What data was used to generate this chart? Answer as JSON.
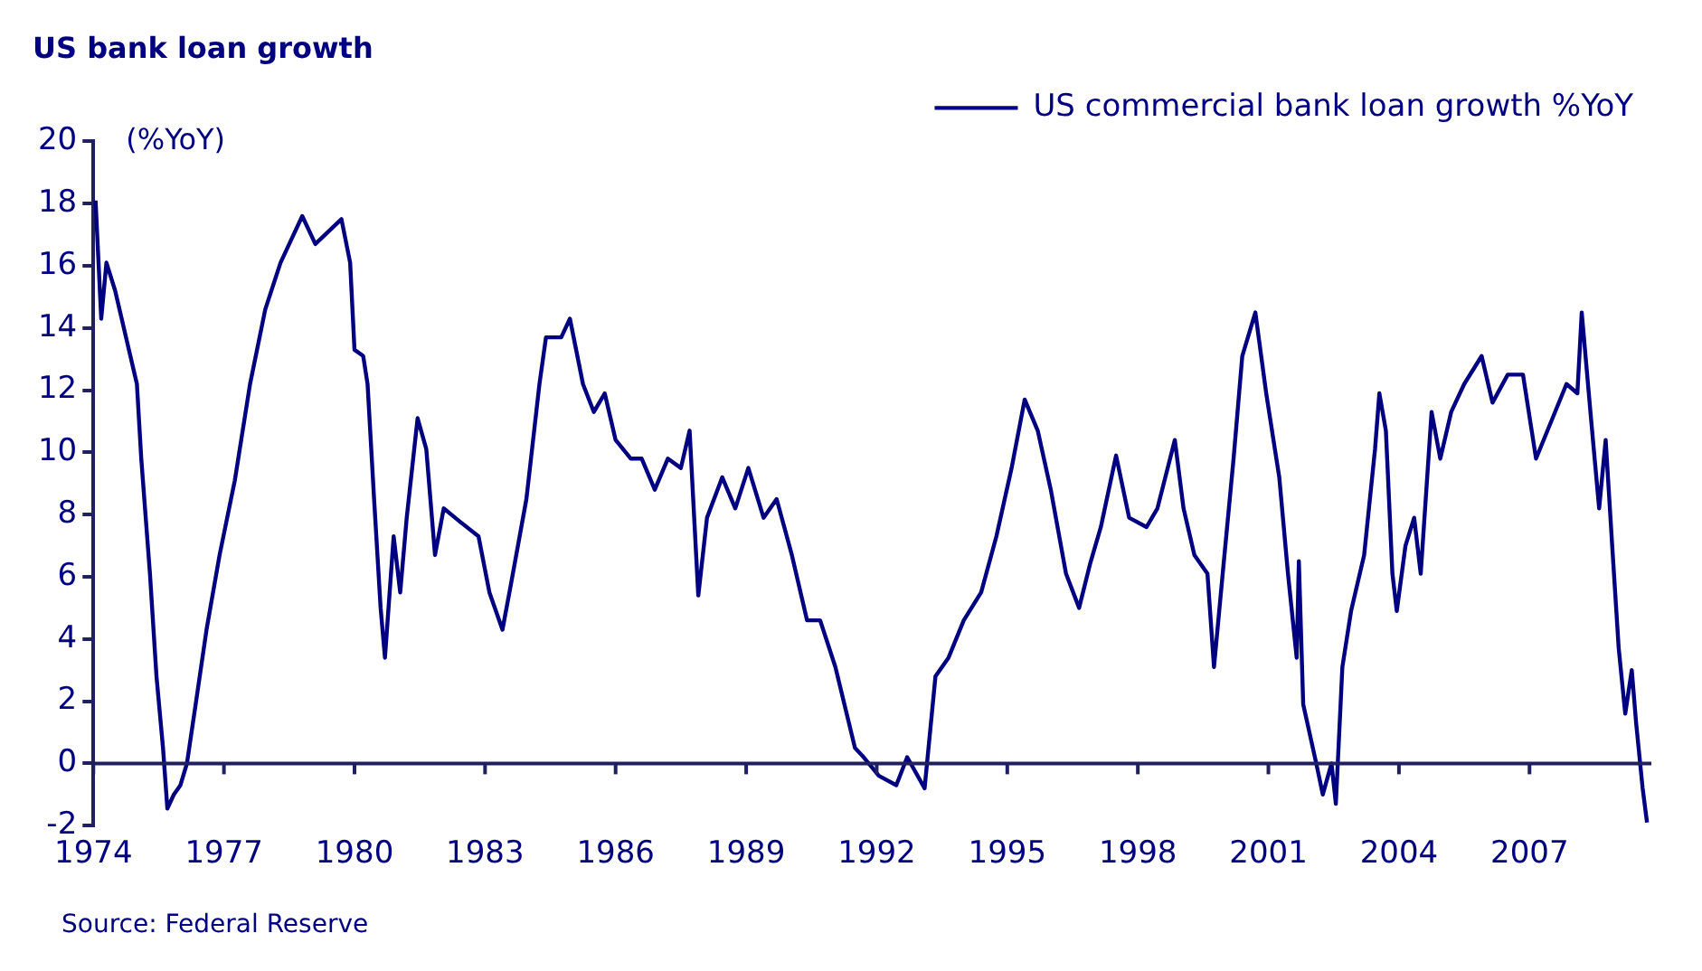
{
  "chart_data": {
    "type": "line",
    "title": "US bank loan growth",
    "ylabel": "(%YoY)",
    "annotations": [
      "Source: Federal Reserve"
    ],
    "series": [
      {
        "name": "US commercial bank loan growth %YoY",
        "color": "#000080",
        "x": [
          1974.05,
          1974.18,
          1974.3,
          1974.5,
          1974.8,
          1975.0,
          1975.1,
          1975.3,
          1975.45,
          1975.6,
          1975.7,
          1975.85,
          1976.0,
          1976.15,
          1976.35,
          1976.6,
          1976.9,
          1977.25,
          1977.6,
          1977.95,
          1978.3,
          1978.5,
          1978.8,
          1979.1,
          1979.4,
          1979.7,
          1979.9,
          1980.0,
          1980.2,
          1980.3,
          1980.45,
          1980.6,
          1980.7,
          1980.9,
          1981.05,
          1981.2,
          1981.45,
          1981.65,
          1981.85,
          1982.05,
          1982.4,
          1982.85,
          1983.1,
          1983.4,
          1983.6,
          1983.95,
          1984.25,
          1984.4,
          1984.75,
          1984.95,
          1985.25,
          1985.5,
          1985.75,
          1986.0,
          1986.35,
          1986.6,
          1986.9,
          1987.2,
          1987.5,
          1987.7,
          1987.9,
          1988.1,
          1988.45,
          1988.75,
          1989.05,
          1989.4,
          1989.7,
          1990.05,
          1990.4,
          1990.7,
          1991.05,
          1991.5,
          1991.7,
          1992.05,
          1992.45,
          1992.7,
          1993.1,
          1993.35,
          1993.65,
          1994.0,
          1994.4,
          1994.75,
          1995.1,
          1995.4,
          1995.7,
          1996.0,
          1996.35,
          1996.65,
          1996.9,
          1997.15,
          1997.5,
          1997.8,
          1998.2,
          1998.45,
          1998.85,
          1999.05,
          1999.3,
          1999.6,
          1999.75,
          1999.95,
          2000.2,
          2000.4,
          2000.7,
          2000.95,
          2001.25,
          2001.45,
          2001.65,
          2001.7,
          2001.8,
          2002.1,
          2002.25,
          2002.45,
          2002.55,
          2002.7,
          2002.9,
          2003.2,
          2003.45,
          2003.55,
          2003.7,
          2003.85,
          2003.95,
          2004.15,
          2004.35,
          2004.5,
          2004.75,
          2004.95,
          2005.2,
          2005.5,
          2005.9,
          2006.15,
          2006.5,
          2006.85,
          2007.15,
          2007.5,
          2007.85,
          2008.1,
          2008.2,
          2008.4,
          2008.6,
          2008.75,
          2008.9,
          2009.05,
          2009.2,
          2009.35,
          2009.45,
          2009.6,
          2009.7
        ],
        "values": [
          18.1,
          14.3,
          16.1,
          15.2,
          13.4,
          12.2,
          9.8,
          6.1,
          2.8,
          0.5,
          -1.45,
          -1.0,
          -0.7,
          0,
          1.9,
          4.3,
          6.7,
          9.1,
          12.2,
          14.6,
          16.1,
          16.7,
          17.6,
          16.7,
          17.1,
          17.5,
          16.1,
          13.3,
          13.1,
          12.2,
          8.5,
          5.0,
          3.4,
          7.3,
          5.5,
          7.9,
          11.1,
          10.1,
          6.7,
          8.2,
          7.8,
          7.3,
          5.5,
          4.3,
          5.8,
          8.5,
          12.2,
          13.7,
          13.7,
          14.3,
          12.2,
          11.3,
          11.9,
          10.4,
          9.8,
          9.8,
          8.8,
          9.8,
          9.5,
          10.7,
          5.4,
          7.9,
          9.2,
          8.2,
          9.5,
          7.9,
          8.5,
          6.7,
          4.6,
          4.6,
          3.1,
          0.5,
          0.2,
          -0.4,
          -0.7,
          0.2,
          -0.8,
          2.8,
          3.4,
          4.6,
          5.5,
          7.3,
          9.5,
          11.7,
          10.7,
          8.8,
          6.1,
          5.0,
          6.4,
          7.6,
          9.9,
          7.9,
          7.6,
          8.2,
          10.4,
          8.2,
          6.7,
          6.1,
          3.1,
          6.1,
          9.8,
          13.1,
          14.5,
          11.9,
          9.2,
          6.1,
          3.4,
          6.5,
          1.9,
          0,
          -1.0,
          0,
          -1.3,
          3.1,
          4.9,
          6.7,
          10.1,
          11.9,
          10.7,
          6.1,
          4.9,
          7.0,
          7.9,
          6.1,
          11.3,
          9.8,
          11.3,
          12.2,
          13.1,
          11.6,
          12.5,
          12.5,
          9.8,
          11.0,
          12.2,
          11.9,
          14.5,
          11.3,
          8.2,
          10.4,
          7.0,
          3.7,
          1.6,
          3.0,
          1.3,
          -0.8,
          -1.9
        ]
      }
    ],
    "xlim": [
      1974,
      2009.8
    ],
    "xticks": [
      1974,
      1977,
      1980,
      1983,
      1986,
      1989,
      1992,
      1995,
      1998,
      2001,
      2004,
      2007
    ],
    "ylim": [
      -2,
      20
    ],
    "yticks": [
      -2,
      0,
      2,
      4,
      6,
      8,
      10,
      12,
      14,
      16,
      18,
      20
    ],
    "grid": false,
    "legend": "top right",
    "marker": "none",
    "line_style": "solid"
  }
}
